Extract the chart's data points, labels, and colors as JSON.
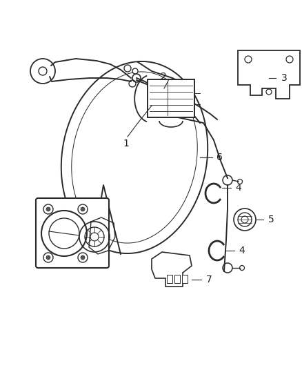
{
  "background_color": "#ffffff",
  "fig_width": 4.38,
  "fig_height": 5.33,
  "dpi": 100,
  "line_color": "#2a2a2a",
  "label_color": "#1a1a1a",
  "label_fontsize": 10,
  "lw_main": 1.4,
  "lw_thin": 0.9,
  "lw_detail": 0.7
}
